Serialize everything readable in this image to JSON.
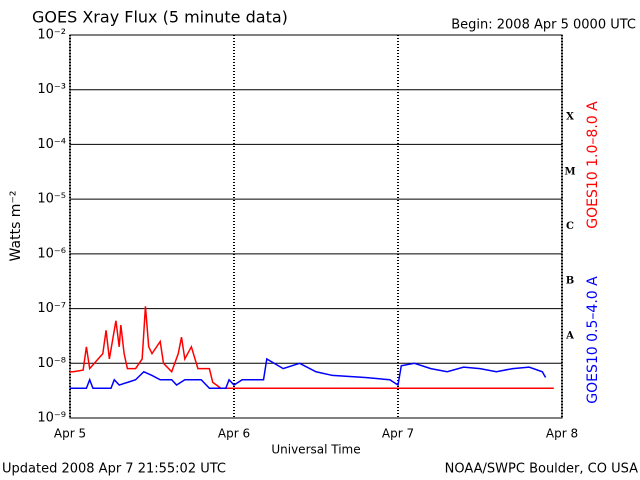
{
  "chart_data": {
    "type": "line",
    "title": "GOES Xray Flux (5 minute data)",
    "begin": "Begin:  2008 Apr 5 0000 UTC",
    "xlabel": "Universal Time",
    "ylabel": "Watts m⁻²",
    "updated": "Updated 2008 Apr  7 21:55:02 UTC",
    "source": "NOAA/SWPC Boulder, CO USA",
    "log_y": true,
    "grid": true,
    "flare_classes": [
      "X",
      "M",
      "C",
      "B",
      "A"
    ],
    "xlim": [
      0,
      3
    ],
    "xticks": [
      {
        "value": 0,
        "label": "Apr 5"
      },
      {
        "value": 1,
        "label": "Apr 6"
      },
      {
        "value": 2,
        "label": "Apr 7"
      },
      {
        "value": 3,
        "label": "Apr 8"
      }
    ],
    "ylim": [
      1e-09,
      0.01
    ],
    "yticks": [
      {
        "value": 1e-09,
        "label": "10⁻⁹"
      },
      {
        "value": 1e-08,
        "label": "10⁻⁸"
      },
      {
        "value": 1e-07,
        "label": "10⁻⁷"
      },
      {
        "value": 1e-06,
        "label": "10⁻⁶"
      },
      {
        "value": 1e-05,
        "label": "10⁻⁵"
      },
      {
        "value": 0.0001,
        "label": "10⁻⁴"
      },
      {
        "value": 0.001,
        "label": "10⁻³"
      },
      {
        "value": 0.01,
        "label": "10⁻²"
      }
    ],
    "series": [
      {
        "name": "GOES10 1.0–8.0 A",
        "color": "#ff0000",
        "x": [
          0,
          0.02,
          0.08,
          0.1,
          0.12,
          0.2,
          0.22,
          0.24,
          0.28,
          0.3,
          0.31,
          0.33,
          0.35,
          0.4,
          0.44,
          0.46,
          0.48,
          0.5,
          0.55,
          0.57,
          0.62,
          0.66,
          0.68,
          0.7,
          0.74,
          0.78,
          0.85,
          0.87,
          0.92,
          1.0,
          1.2,
          2.0,
          2.95
        ],
        "values": [
          7e-09,
          7e-09,
          7.5e-09,
          2e-08,
          8e-09,
          1.5e-08,
          4e-08,
          1.2e-08,
          6e-08,
          2e-08,
          5e-08,
          1.5e-08,
          8e-09,
          8e-09,
          1.2e-08,
          1.1e-07,
          2e-08,
          1.5e-08,
          2.5e-08,
          1e-08,
          7e-09,
          1.5e-08,
          3e-08,
          1.2e-08,
          2e-08,
          8e-09,
          8e-09,
          4.5e-09,
          3.5e-09,
          3.5e-09,
          3.5e-09,
          3.5e-09,
          3.5e-09
        ]
      },
      {
        "name": "GOES10 0.5–4.0 A",
        "color": "#0000ff",
        "x": [
          0,
          0.1,
          0.12,
          0.14,
          0.25,
          0.27,
          0.3,
          0.4,
          0.45,
          0.5,
          0.55,
          0.62,
          0.65,
          0.7,
          0.8,
          0.85,
          0.95,
          0.97,
          1.0,
          1.05,
          1.18,
          1.2,
          1.3,
          1.4,
          1.5,
          1.6,
          1.8,
          1.95,
          2.0,
          2.02,
          2.1,
          2.2,
          2.3,
          2.4,
          2.5,
          2.6,
          2.7,
          2.8,
          2.88,
          2.9
        ],
        "values": [
          3.5e-09,
          3.5e-09,
          5e-09,
          3.5e-09,
          3.5e-09,
          5e-09,
          4e-09,
          5e-09,
          7e-09,
          6e-09,
          5e-09,
          5e-09,
          4e-09,
          5e-09,
          5e-09,
          3.5e-09,
          3.5e-09,
          5e-09,
          4e-09,
          5e-09,
          5e-09,
          1.2e-08,
          8e-09,
          1e-08,
          7e-09,
          6e-09,
          5.5e-09,
          5e-09,
          4e-09,
          9e-09,
          1e-08,
          8e-09,
          7e-09,
          8.5e-09,
          8e-09,
          7e-09,
          8e-09,
          8.5e-09,
          7e-09,
          5.5e-09
        ]
      }
    ]
  }
}
